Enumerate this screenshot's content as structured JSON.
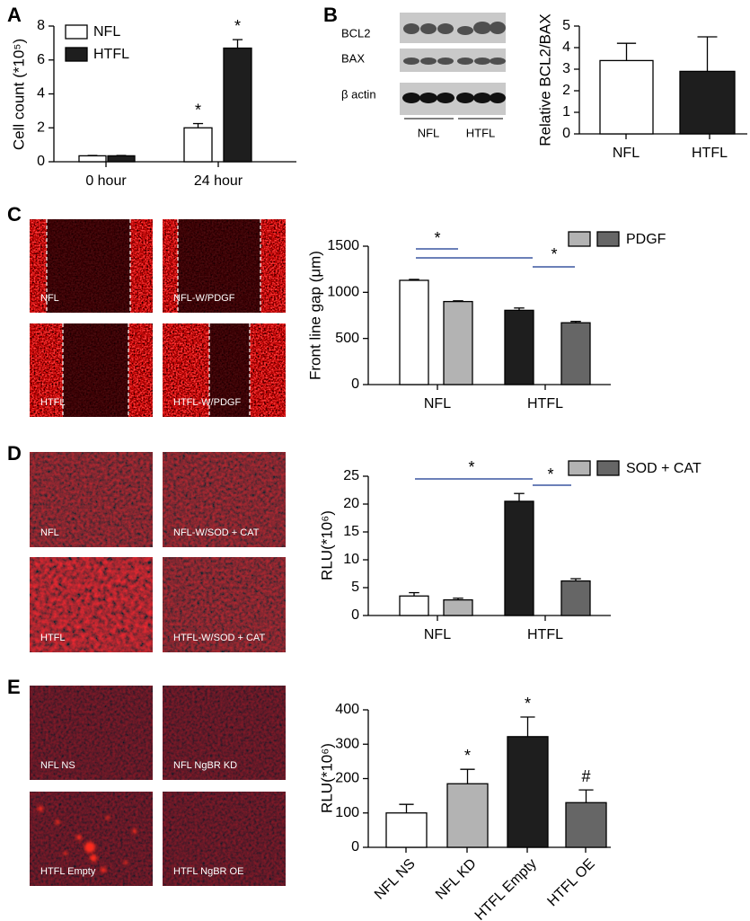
{
  "panel_labels": [
    "A",
    "B",
    "C",
    "D",
    "E"
  ],
  "blot": {
    "rows": [
      "BCL2",
      "BAX",
      "β actin"
    ],
    "groups": [
      "NFL",
      "HTFL"
    ]
  },
  "images": {
    "C": [
      "NFL",
      "NFL-W/PDGF",
      "HTFL",
      "HTFL-W/PDGF"
    ],
    "D": [
      "NFL",
      "NFL-W/SOD + CAT",
      "HTFL",
      "HTFL-W/SOD + CAT"
    ],
    "E": [
      "NFL NS",
      "NFL NgBR KD",
      "HTFL Empty",
      "HTFL NgBR OE"
    ]
  },
  "chart_data": [
    {
      "type": "bar",
      "ylabel": "Cell count (*10⁵)",
      "categories": [
        "0 hour",
        "24 hour"
      ],
      "series": [
        {
          "name": "NFL",
          "color": "#ffffff",
          "values": [
            0.35,
            2.0
          ],
          "errors": [
            0.02,
            0.25
          ],
          "sig": [
            null,
            "*"
          ]
        },
        {
          "name": "HTFL",
          "color": "#1e1e1e",
          "values": [
            0.35,
            6.7
          ],
          "errors": [
            0.02,
            0.5
          ],
          "sig": [
            null,
            "*"
          ]
        }
      ],
      "ylim": [
        0,
        8
      ],
      "yticks": [
        0,
        2,
        4,
        6,
        8
      ]
    },
    {
      "type": "bar",
      "ylabel": "Relative BCL2/BAX",
      "categories": [
        "NFL",
        "HTFL"
      ],
      "series": [
        {
          "colors": [
            "#ffffff",
            "#1e1e1e"
          ],
          "values": [
            3.4,
            2.9
          ],
          "errors": [
            0.8,
            1.6
          ]
        }
      ],
      "ylim": [
        0,
        5
      ],
      "yticks": [
        0,
        1,
        2,
        3,
        4,
        5
      ]
    },
    {
      "type": "bar",
      "ylabel": "Front line gap (μm)",
      "categories": [
        "NFL",
        "HTFL"
      ],
      "series": [
        {
          "colors": [
            "#ffffff",
            "#1e1e1e"
          ],
          "values": [
            1130,
            805
          ],
          "errors": [
            10,
            25
          ]
        },
        {
          "colors": [
            "#b3b3b3",
            "#666666"
          ],
          "values": [
            900,
            670
          ],
          "errors": [
            8,
            15
          ]
        }
      ],
      "legend": {
        "label": "PDGF",
        "colors": [
          "#b3b3b3",
          "#666666"
        ]
      },
      "annotations": [
        "*",
        "*"
      ],
      "ylim": [
        0,
        1500
      ],
      "yticks": [
        0,
        500,
        1000,
        1500
      ]
    },
    {
      "type": "bar",
      "ylabel": "RLU(*10⁶)",
      "categories": [
        "NFL",
        "HTFL"
      ],
      "series": [
        {
          "colors": [
            "#ffffff",
            "#1e1e1e"
          ],
          "values": [
            3.5,
            20.5
          ],
          "errors": [
            0.6,
            1.4
          ]
        },
        {
          "colors": [
            "#b3b3b3",
            "#666666"
          ],
          "values": [
            2.8,
            6.2
          ],
          "errors": [
            0.3,
            0.4
          ]
        }
      ],
      "legend": {
        "label": "SOD + CAT",
        "colors": [
          "#b3b3b3",
          "#666666"
        ]
      },
      "annotations": [
        "*",
        "*"
      ],
      "ylim": [
        0,
        25
      ],
      "yticks": [
        0,
        5,
        10,
        15,
        20,
        25
      ]
    },
    {
      "type": "bar",
      "ylabel": "RLU(*10⁶)",
      "categories": [
        "NFL NS",
        "NFL KD",
        "HTFL Empty",
        "HTFL OE"
      ],
      "series": [
        {
          "colors": [
            "#ffffff",
            "#b3b3b3",
            "#1e1e1e",
            "#666666"
          ],
          "values": [
            100,
            185,
            322,
            130
          ],
          "errors": [
            25,
            42,
            57,
            37
          ],
          "sig": [
            null,
            "*",
            "*",
            "#"
          ]
        }
      ],
      "ylim": [
        0,
        400
      ],
      "yticks": [
        0,
        100,
        200,
        300,
        400
      ]
    }
  ]
}
